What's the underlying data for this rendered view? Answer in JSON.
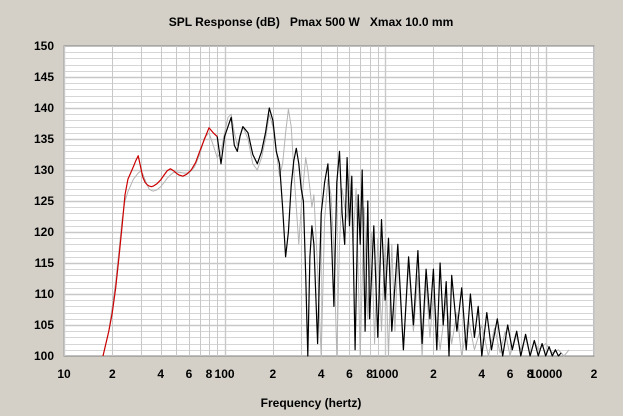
{
  "chart_data": {
    "type": "line",
    "title": "SPL Response (dB)   Pmax 500 W   Xmax 10.0 mm",
    "xlabel": "Frequency (hertz)",
    "ylabel": "",
    "x_scale": "log",
    "xlim": [
      10,
      20000
    ],
    "ylim": [
      100,
      150
    ],
    "grid": true,
    "legend": "none",
    "yticks": [
      "100",
      "105",
      "110",
      "115",
      "120",
      "125",
      "130",
      "135",
      "140",
      "145",
      "150"
    ],
    "xticks": [
      {
        "value": 10,
        "label": "10"
      },
      {
        "value": 20,
        "label": "2"
      },
      {
        "value": 40,
        "label": "4"
      },
      {
        "value": 60,
        "label": "6"
      },
      {
        "value": 80,
        "label": "8"
      },
      {
        "value": 100,
        "label": "100"
      },
      {
        "value": 200,
        "label": "2"
      },
      {
        "value": 400,
        "label": "4"
      },
      {
        "value": 600,
        "label": "6"
      },
      {
        "value": 800,
        "label": "8"
      },
      {
        "value": 1000,
        "label": "1000"
      },
      {
        "value": 2000,
        "label": "2"
      },
      {
        "value": 4000,
        "label": "4"
      },
      {
        "value": 6000,
        "label": "6"
      },
      {
        "value": 8000,
        "label": "8"
      },
      {
        "value": 10000,
        "label": "10000"
      },
      {
        "value": 20000,
        "label": "2"
      }
    ],
    "colors": {
      "background": "#d4d0c8",
      "plot": "#ffffff",
      "grid": "#c8c8c8",
      "lowband": "#cc0000",
      "response": "#000000",
      "reference": "#b4b4b4"
    },
    "series": [
      {
        "color": "#cc0000",
        "x": [
          17.5,
          19,
          20,
          21,
          22,
          23,
          24,
          25,
          26,
          27,
          28,
          29,
          30,
          31,
          32,
          33,
          34,
          35,
          36,
          38,
          40,
          42,
          44,
          46,
          48,
          50,
          52,
          55,
          58,
          62,
          66,
          70,
          75,
          80,
          85,
          90
        ],
        "y": [
          100,
          104,
          107,
          111,
          116,
          121,
          126,
          128.5,
          129.5,
          130.5,
          131.5,
          132.3,
          130.5,
          128.8,
          128,
          127.6,
          127.4,
          127.3,
          127.4,
          127.8,
          128.4,
          129.2,
          129.9,
          130.2,
          129.9,
          129.5,
          129.2,
          129,
          129.3,
          130,
          131.2,
          133,
          135,
          136.8,
          136,
          135.4
        ]
      },
      {
        "color": "#000000",
        "x": [
          90,
          95,
          100,
          105,
          110,
          115,
          120,
          125,
          130,
          140,
          150,
          160,
          170,
          180,
          190,
          200,
          210,
          220,
          230,
          240,
          250,
          260,
          270,
          280,
          290,
          300,
          310,
          320,
          330,
          340,
          350,
          360,
          380,
          400,
          420,
          440,
          460,
          480,
          500,
          520,
          540,
          560,
          580,
          600,
          620,
          650,
          680,
          700,
          720,
          750,
          780,
          800,
          850,
          900,
          950,
          1000,
          1050,
          1100,
          1200,
          1300,
          1400,
          1500,
          1600,
          1700,
          1800,
          1900,
          2000,
          2100,
          2200,
          2300,
          2400,
          2500,
          2600,
          2800,
          3000,
          3200,
          3400,
          3600,
          3800,
          4000,
          4300,
          4600,
          5000,
          5400,
          5800,
          6200,
          6600,
          7000,
          7500,
          8000,
          8500,
          9000,
          9500,
          10000,
          10500,
          11000,
          11500,
          12000,
          12500
        ],
        "y": [
          135.4,
          131,
          135.4,
          137,
          138.5,
          134,
          133,
          135.5,
          137,
          136,
          132.5,
          131,
          133,
          136,
          140,
          138,
          133,
          131,
          124,
          116,
          120,
          127.5,
          131.5,
          133.5,
          131,
          127,
          125,
          113,
          100,
          116,
          121,
          118,
          102,
          123,
          128,
          131,
          121,
          108,
          128,
          133,
          123,
          118,
          132,
          121,
          129,
          101,
          126,
          118,
          130,
          104,
          125,
          106,
          121,
          103,
          122,
          109,
          119,
          104,
          118,
          101,
          116,
          105,
          117,
          102,
          114,
          106,
          114,
          101,
          115,
          105,
          112,
          100,
          113,
          104,
          111,
          101,
          110,
          103,
          108,
          100,
          107,
          101,
          106,
          100,
          105,
          101,
          104,
          100,
          103.5,
          100,
          102.5,
          100,
          102,
          100,
          101.5,
          100,
          101,
          100,
          100.5
        ]
      },
      {
        "color": "#b4b4b4",
        "x": [
          17.5,
          19,
          20,
          21,
          22,
          23,
          24,
          25,
          26,
          27,
          28,
          29,
          30,
          31,
          32,
          33,
          34,
          35,
          36,
          38,
          40,
          42,
          44,
          46,
          48,
          50,
          53,
          56,
          60,
          65,
          70,
          75,
          80,
          85,
          90,
          95,
          100,
          105,
          110,
          115,
          120,
          130,
          140,
          150,
          160,
          170,
          180,
          190,
          200,
          210,
          220,
          230,
          240,
          250,
          260,
          270,
          280,
          290,
          300,
          310,
          320,
          330,
          340,
          350,
          360,
          380,
          400,
          420,
          440,
          460,
          480,
          500,
          520,
          540,
          560,
          580,
          600,
          630,
          660,
          700,
          740,
          780,
          820,
          860,
          900,
          950,
          1000,
          1050,
          1100,
          1150,
          1200,
          1300,
          1400,
          1500,
          1600,
          1700,
          1800,
          1900,
          2000,
          2200,
          2400,
          2600,
          2800,
          3000,
          3300,
          3600,
          4000,
          4400,
          4800,
          5200,
          5600,
          6000,
          6500,
          7000,
          7500,
          8000,
          8500,
          9000,
          10000,
          11000,
          12000,
          13000,
          14000
        ],
        "y": [
          100,
          104,
          108,
          112,
          117,
          122,
          125,
          126.5,
          127.5,
          128.5,
          129,
          129.5,
          129.8,
          129.3,
          128.4,
          127.5,
          126.9,
          126.7,
          126.6,
          126.8,
          127.3,
          128,
          128.7,
          129.2,
          129.6,
          129.7,
          129.6,
          129.5,
          129.5,
          130.5,
          132.5,
          135.2,
          136,
          134,
          132,
          133,
          136,
          138.5,
          139,
          136,
          134,
          137,
          135,
          131,
          130,
          132,
          135,
          139,
          137,
          133,
          129,
          131,
          136,
          139.8,
          137,
          130,
          124,
          118,
          124,
          128,
          132,
          130,
          127,
          124,
          126,
          114,
          100,
          122,
          128.5,
          126,
          117,
          100,
          118,
          127,
          124,
          122,
          130,
          118,
          127,
          100,
          124,
          106,
          120,
          102,
          119,
          104,
          118,
          100,
          118,
          104,
          116,
          101,
          115,
          104,
          113,
          100,
          112,
          103,
          110,
          101,
          109,
          102,
          107,
          100,
          106,
          101,
          105,
          100,
          104.5,
          100.5,
          104,
          100,
          103.5,
          101,
          103,
          100,
          102.5,
          101,
          102,
          100.5,
          101,
          100,
          101
        ]
      }
    ]
  }
}
